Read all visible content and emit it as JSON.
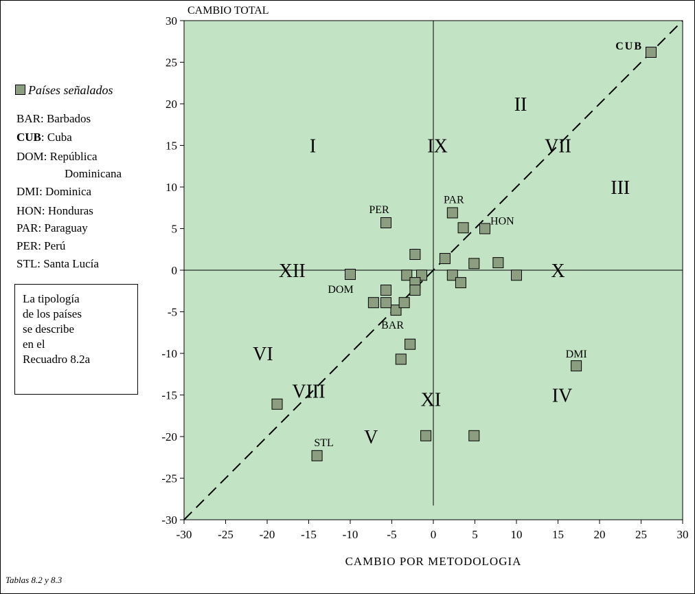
{
  "chart_data": {
    "type": "scatter",
    "ylabel": "CAMBIO TOTAL",
    "xlabel": "CAMBIO POR METODOLOGIA",
    "xlim": [
      -30,
      30
    ],
    "ylim": [
      -30,
      30
    ],
    "xticks": [
      "-30",
      "-25",
      "-20",
      "-15",
      "-10",
      "-5",
      "0",
      "5",
      "10",
      "15",
      "20",
      "25",
      "30"
    ],
    "yticks": [
      "30",
      "25",
      "20",
      "15",
      "10",
      "5",
      "0",
      "-5",
      "-10",
      "-15",
      "-20",
      "-25",
      "-30"
    ],
    "background_color": "#c2e4c5",
    "marker_color": "#8c9e80",
    "diagonal": {
      "style": "dashed",
      "from": [
        -30,
        -30
      ],
      "to": [
        30,
        30
      ]
    },
    "regions": [
      {
        "label": "I",
        "x": -14.5,
        "y": 15
      },
      {
        "label": "II",
        "x": 10.5,
        "y": 20
      },
      {
        "label": "III",
        "x": 22.5,
        "y": 10
      },
      {
        "label": "IV",
        "x": 15.5,
        "y": -15
      },
      {
        "label": "V",
        "x": -7.5,
        "y": -20
      },
      {
        "label": "VI",
        "x": -20.5,
        "y": -10
      },
      {
        "label": "VII",
        "x": 15,
        "y": 15
      },
      {
        "label": "VIII",
        "x": -15,
        "y": -14.5
      },
      {
        "label": "IX",
        "x": 0.5,
        "y": 15
      },
      {
        "label": "X",
        "x": 15,
        "y": 0
      },
      {
        "label": "XI",
        "x": -0.3,
        "y": -15.5
      },
      {
        "label": "XII",
        "x": -17,
        "y": 0
      }
    ],
    "series": [
      {
        "name": "Países señalados",
        "points": [
          {
            "x": 26.2,
            "y": 26.2,
            "label": "CUB"
          },
          {
            "x": 17.2,
            "y": -11.5,
            "label": "DMI"
          },
          {
            "x": -5.7,
            "y": 5.7,
            "label": "PER"
          },
          {
            "x": 2.3,
            "y": 6.9,
            "label": "PAR"
          },
          {
            "x": 6.2,
            "y": 5.0,
            "label": "HON"
          },
          {
            "x": -10.0,
            "y": -0.5,
            "label": "DOM"
          },
          {
            "x": -4.5,
            "y": -4.8,
            "label": "BAR"
          },
          {
            "x": -14.0,
            "y": -22.3,
            "label": "STL"
          },
          {
            "x": 3.6,
            "y": 5.1,
            "label": ""
          },
          {
            "x": -2.2,
            "y": 1.9,
            "label": ""
          },
          {
            "x": 1.4,
            "y": 1.4,
            "label": ""
          },
          {
            "x": 4.9,
            "y": 0.8,
            "label": ""
          },
          {
            "x": 7.8,
            "y": 0.9,
            "label": ""
          },
          {
            "x": -3.2,
            "y": -0.6,
            "label": ""
          },
          {
            "x": -1.4,
            "y": -0.6,
            "label": ""
          },
          {
            "x": 2.3,
            "y": -0.6,
            "label": ""
          },
          {
            "x": 10.0,
            "y": -0.6,
            "label": ""
          },
          {
            "x": -2.2,
            "y": -1.5,
            "label": ""
          },
          {
            "x": 3.3,
            "y": -1.5,
            "label": ""
          },
          {
            "x": -5.7,
            "y": -2.4,
            "label": ""
          },
          {
            "x": -2.2,
            "y": -2.4,
            "label": ""
          },
          {
            "x": -7.2,
            "y": -3.9,
            "label": ""
          },
          {
            "x": -5.7,
            "y": -3.9,
            "label": ""
          },
          {
            "x": -3.5,
            "y": -3.9,
            "label": ""
          },
          {
            "x": -2.8,
            "y": -8.9,
            "label": ""
          },
          {
            "x": -3.9,
            "y": -10.7,
            "label": ""
          },
          {
            "x": -18.8,
            "y": -16.1,
            "label": ""
          },
          {
            "x": -0.9,
            "y": -19.9,
            "label": ""
          },
          {
            "x": 4.9,
            "y": -19.9,
            "label": ""
          }
        ]
      }
    ]
  },
  "legend": {
    "title": "Países señalados",
    "entries": [
      {
        "code": "BAR",
        "name": "Barbados"
      },
      {
        "code": "CUB",
        "name": "Cuba"
      },
      {
        "code": "DOM",
        "name": "República"
      },
      {
        "code": "",
        "name": "Dominicana"
      },
      {
        "code": "DMI",
        "name": "Dominica"
      },
      {
        "code": "HON",
        "name": "Honduras"
      },
      {
        "code": "PAR",
        "name": "Paraguay"
      },
      {
        "code": "PER",
        "name": "Perú"
      },
      {
        "code": "STL",
        "name": "Santa Lucía"
      }
    ]
  },
  "note": "La tipología\nde los países\nse describe\nen el\nRecuadro 8.2a",
  "footnote": "Tablas 8.2 y 8.3"
}
